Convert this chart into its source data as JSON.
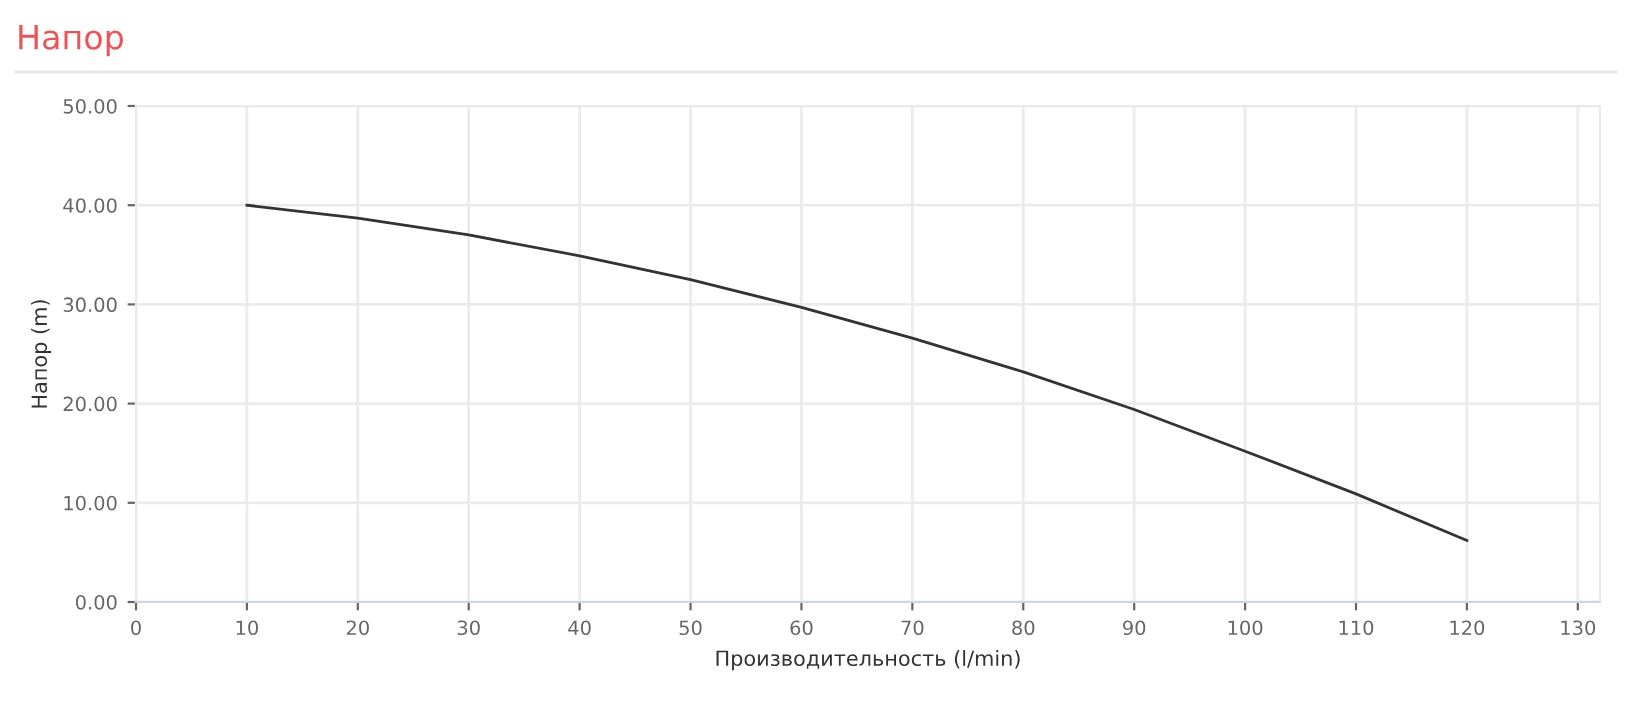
{
  "chart_data": {
    "type": "line",
    "title": "Напор",
    "xlabel": "Производительность (l/min)",
    "ylabel": "Напор (m)",
    "x": [
      10,
      20,
      30,
      40,
      50,
      60,
      70,
      80,
      90,
      100,
      110,
      120
    ],
    "series": [
      {
        "color": "#333333",
        "values": [
          40.0,
          38.7,
          37.0,
          34.9,
          32.5,
          29.7,
          26.6,
          23.2,
          19.4,
          15.2,
          10.9,
          6.2
        ]
      }
    ],
    "xlim": [
      0,
      132
    ],
    "xticks": [
      0,
      10,
      20,
      30,
      40,
      50,
      60,
      70,
      80,
      90,
      100,
      110,
      120,
      130
    ],
    "ylim": [
      0,
      50
    ],
    "yticks": [
      {
        "value": 0,
        "label": "0.00"
      },
      {
        "value": 10,
        "label": "10.00"
      },
      {
        "value": 20,
        "label": "20.00"
      },
      {
        "value": 30,
        "label": "30.00"
      },
      {
        "value": 40,
        "label": "40.00"
      },
      {
        "value": 50,
        "label": "50.00"
      }
    ],
    "grid": true,
    "marker": "none",
    "line_style": "solid"
  }
}
